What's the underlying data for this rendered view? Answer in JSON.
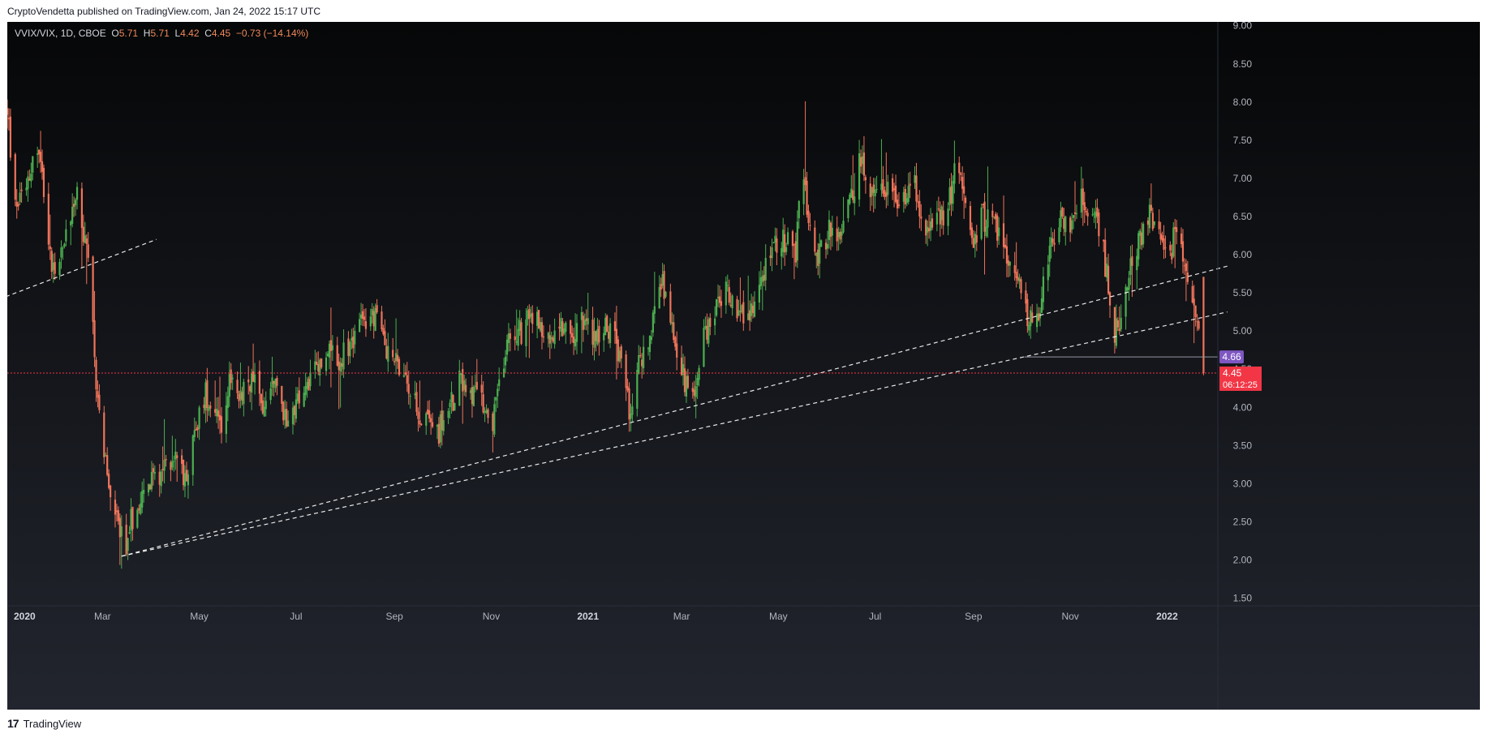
{
  "publisher_line": "CryptoVendetta published on TradingView.com, Jan 24, 2022 15:17 UTC",
  "legend": {
    "symbol": "VVIX/VIX, 1D, CBOE",
    "open_label": "O",
    "open": "5.71",
    "high_label": "H",
    "high": "5.71",
    "low_label": "L",
    "low": "4.42",
    "close_label": "C",
    "close": "4.45",
    "change": "−0.73 (−14.14%)"
  },
  "footer": {
    "brand": "TradingView",
    "logo_text": "17"
  },
  "colors": {
    "background_top": "#060708",
    "background_bottom": "#22252e",
    "up": "#4caf50",
    "down": "#f0745a",
    "grid": "#2a2e39",
    "axis_text": "#b2b5be",
    "trendline": "#ffffff",
    "price_line": "#f23645",
    "support_line": "#9598a1",
    "support_tag": "#7e57c2",
    "price_tag": "#f23645"
  },
  "chart_data": {
    "type": "candlestick",
    "symbol": "VVIX/VIX",
    "interval": "1D",
    "exchange": "CBOE",
    "x_range": [
      "2020-01-01",
      "2022-02-02"
    ],
    "y_range": [
      1.4,
      9.05
    ],
    "y_ticks": [
      "9.00",
      "8.50",
      "8.00",
      "7.50",
      "7.00",
      "6.50",
      "6.00",
      "5.50",
      "5.00",
      "4.50",
      "4.00",
      "3.50",
      "3.00",
      "2.50",
      "2.00",
      "1.50"
    ],
    "x_ticks": [
      {
        "date": "2020-01-01",
        "label": "2020",
        "bold": true
      },
      {
        "date": "2020-03-01",
        "label": "Mar",
        "bold": false
      },
      {
        "date": "2020-05-01",
        "label": "May",
        "bold": false
      },
      {
        "date": "2020-07-01",
        "label": "Jul",
        "bold": false
      },
      {
        "date": "2020-09-01",
        "label": "Sep",
        "bold": false
      },
      {
        "date": "2020-11-01",
        "label": "Nov",
        "bold": false
      },
      {
        "date": "2021-01-01",
        "label": "2021",
        "bold": true
      },
      {
        "date": "2021-03-01",
        "label": "Mar",
        "bold": false
      },
      {
        "date": "2021-05-01",
        "label": "May",
        "bold": false
      },
      {
        "date": "2021-07-01",
        "label": "Jul",
        "bold": false
      },
      {
        "date": "2021-09-01",
        "label": "Sep",
        "bold": false
      },
      {
        "date": "2021-11-01",
        "label": "Nov",
        "bold": false
      },
      {
        "date": "2022-01-01",
        "label": "2022",
        "bold": true
      }
    ],
    "close_path": [
      [
        "2020-01-01",
        7.9
      ],
      [
        "2020-01-06",
        6.6
      ],
      [
        "2020-01-10",
        6.9
      ],
      [
        "2020-01-15",
        7.1
      ],
      [
        "2020-01-20",
        7.4
      ],
      [
        "2020-01-24",
        6.9
      ],
      [
        "2020-01-28",
        6.0
      ],
      [
        "2020-02-01",
        5.8
      ],
      [
        "2020-02-05",
        6.1
      ],
      [
        "2020-02-10",
        6.5
      ],
      [
        "2020-02-14",
        6.9
      ],
      [
        "2020-02-18",
        6.2
      ],
      [
        "2020-02-21",
        5.9
      ],
      [
        "2020-02-24",
        5.1
      ],
      [
        "2020-02-27",
        4.0
      ],
      [
        "2020-03-02",
        3.4
      ],
      [
        "2020-03-05",
        2.9
      ],
      [
        "2020-03-09",
        2.7
      ],
      [
        "2020-03-12",
        2.3
      ],
      [
        "2020-03-16",
        2.2
      ],
      [
        "2020-03-19",
        2.5
      ],
      [
        "2020-03-24",
        2.8
      ],
      [
        "2020-03-30",
        2.9
      ],
      [
        "2020-04-03",
        3.1
      ],
      [
        "2020-04-09",
        3.2
      ],
      [
        "2020-04-15",
        3.4
      ],
      [
        "2020-04-21",
        3.1
      ],
      [
        "2020-04-25",
        3.3
      ],
      [
        "2020-04-30",
        3.8
      ],
      [
        "2020-05-05",
        4.2
      ],
      [
        "2020-05-10",
        4.0
      ],
      [
        "2020-05-15",
        3.8
      ],
      [
        "2020-05-20",
        4.3
      ],
      [
        "2020-05-27",
        4.1
      ],
      [
        "2020-06-03",
        4.4
      ],
      [
        "2020-06-10",
        4.0
      ],
      [
        "2020-06-17",
        4.3
      ],
      [
        "2020-06-24",
        3.9
      ],
      [
        "2020-07-01",
        4.0
      ],
      [
        "2020-07-08",
        4.3
      ],
      [
        "2020-07-15",
        4.5
      ],
      [
        "2020-07-22",
        4.7
      ],
      [
        "2020-07-29",
        4.6
      ],
      [
        "2020-08-05",
        4.9
      ],
      [
        "2020-08-12",
        5.1
      ],
      [
        "2020-08-19",
        5.2
      ],
      [
        "2020-08-25",
        4.9
      ],
      [
        "2020-09-01",
        4.6
      ],
      [
        "2020-09-08",
        4.3
      ],
      [
        "2020-09-15",
        4.0
      ],
      [
        "2020-09-22",
        3.8
      ],
      [
        "2020-09-29",
        3.7
      ],
      [
        "2020-10-06",
        4.0
      ],
      [
        "2020-10-13",
        4.4
      ],
      [
        "2020-10-20",
        4.2
      ],
      [
        "2020-10-27",
        4.0
      ],
      [
        "2020-11-02",
        3.8
      ],
      [
        "2020-11-06",
        4.3
      ],
      [
        "2020-11-12",
        4.9
      ],
      [
        "2020-11-20",
        5.0
      ],
      [
        "2020-11-28",
        5.2
      ],
      [
        "2020-12-06",
        4.9
      ],
      [
        "2020-12-14",
        5.1
      ],
      [
        "2020-12-22",
        5.0
      ],
      [
        "2020-12-30",
        5.1
      ],
      [
        "2021-01-08",
        4.9
      ],
      [
        "2021-01-15",
        5.1
      ],
      [
        "2021-01-22",
        4.6
      ],
      [
        "2021-01-27",
        4.0
      ],
      [
        "2021-02-03",
        4.6
      ],
      [
        "2021-02-10",
        5.0
      ],
      [
        "2021-02-17",
        5.6
      ],
      [
        "2021-02-24",
        4.9
      ],
      [
        "2021-03-02",
        4.4
      ],
      [
        "2021-03-08",
        4.2
      ],
      [
        "2021-03-15",
        4.9
      ],
      [
        "2021-03-22",
        5.2
      ],
      [
        "2021-03-29",
        5.6
      ],
      [
        "2021-04-05",
        5.3
      ],
      [
        "2021-04-12",
        5.2
      ],
      [
        "2021-04-19",
        5.6
      ],
      [
        "2021-04-25",
        6.0
      ],
      [
        "2021-04-30",
        6.1
      ],
      [
        "2021-05-06",
        6.2
      ],
      [
        "2021-05-12",
        5.9
      ],
      [
        "2021-05-16",
        7.4
      ],
      [
        "2021-05-20",
        6.4
      ],
      [
        "2021-05-26",
        6.0
      ],
      [
        "2021-06-02",
        6.3
      ],
      [
        "2021-06-09",
        6.2
      ],
      [
        "2021-06-16",
        6.7
      ],
      [
        "2021-06-22",
        7.3
      ],
      [
        "2021-06-28",
        6.8
      ],
      [
        "2021-07-05",
        6.9
      ],
      [
        "2021-07-12",
        6.7
      ],
      [
        "2021-07-19",
        6.8
      ],
      [
        "2021-07-26",
        6.9
      ],
      [
        "2021-08-02",
        6.3
      ],
      [
        "2021-08-09",
        6.4
      ],
      [
        "2021-08-16",
        6.6
      ],
      [
        "2021-08-21",
        7.2
      ],
      [
        "2021-08-26",
        6.7
      ],
      [
        "2021-09-01",
        6.2
      ],
      [
        "2021-09-06",
        6.5
      ],
      [
        "2021-09-12",
        6.4
      ],
      [
        "2021-09-18",
        6.2
      ],
      [
        "2021-09-25",
        5.8
      ],
      [
        "2021-10-01",
        5.5
      ],
      [
        "2021-10-06",
        5.1
      ],
      [
        "2021-10-12",
        5.2
      ],
      [
        "2021-10-18",
        5.9
      ],
      [
        "2021-10-25",
        6.5
      ],
      [
        "2021-11-01",
        6.4
      ],
      [
        "2021-11-08",
        6.7
      ],
      [
        "2021-11-15",
        6.5
      ],
      [
        "2021-11-20",
        6.3
      ],
      [
        "2021-11-25",
        5.6
      ],
      [
        "2021-11-29",
        5.0
      ],
      [
        "2021-12-04",
        5.2
      ],
      [
        "2021-12-09",
        5.9
      ],
      [
        "2021-12-15",
        6.2
      ],
      [
        "2021-12-21",
        6.5
      ],
      [
        "2021-12-27",
        6.3
      ],
      [
        "2022-01-03",
        6.0
      ],
      [
        "2022-01-07",
        6.4
      ],
      [
        "2022-01-12",
        5.9
      ],
      [
        "2022-01-17",
        5.4
      ],
      [
        "2022-01-20",
        5.18
      ],
      [
        "2022-01-24",
        4.45
      ]
    ],
    "candle_wick_extremes": [
      {
        "date": "2020-03-16",
        "low": 2.05
      },
      {
        "date": "2021-05-18",
        "high": 8.01
      },
      {
        "date": "2021-08-22",
        "high": 7.62
      },
      {
        "date": "2022-01-24",
        "open": 5.71,
        "high": 5.71,
        "low": 4.42,
        "close": 4.45
      }
    ],
    "last_bar": {
      "date": "2022-01-24",
      "open": 5.71,
      "high": 5.71,
      "low": 4.42,
      "close": 4.45,
      "change": -0.73,
      "change_pct": -14.14
    },
    "trendlines": [
      {
        "from": [
          "2019-12-31",
          5.45
        ],
        "to": [
          "2020-04-04",
          6.2
        ]
      },
      {
        "from": [
          "2020-03-13",
          2.05
        ],
        "to": [
          "2022-02-08",
          5.85
        ]
      },
      {
        "from": [
          "2020-03-13",
          2.05
        ],
        "to": [
          "2022-02-08",
          5.25
        ]
      }
    ],
    "support_level": {
      "value": 4.66,
      "start": "2021-10-03",
      "label": "4.66"
    },
    "current_price": {
      "value": 4.45,
      "label": "4.45",
      "countdown": "06:12:25"
    }
  }
}
